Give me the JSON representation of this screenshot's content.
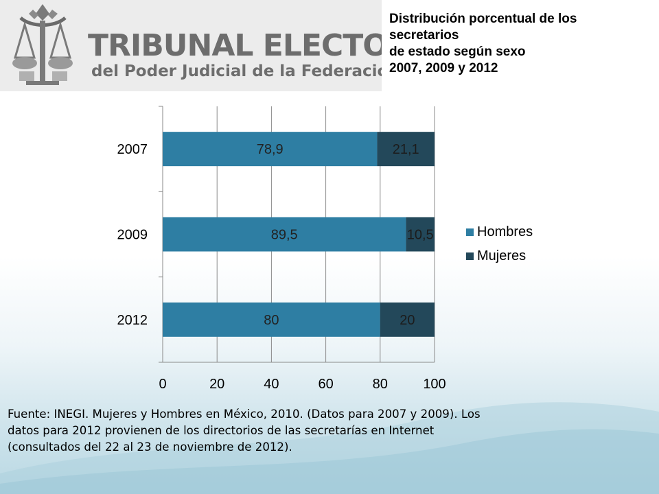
{
  "logo": {
    "line1": "TRIBUNAL ELECTORAL",
    "line2": "del Poder Judicial de la Federación"
  },
  "title_lines": [
    "Distribución porcentual de los",
    "secretarios",
    "de estado según sexo",
    "2007, 2009 y 2012"
  ],
  "colors": {
    "hombres": "#2e7ea3",
    "mujeres": "#23485a"
  },
  "chart_data": {
    "type": "bar",
    "orientation": "horizontal",
    "stacked": true,
    "categories": [
      "2007",
      "2009",
      "2012"
    ],
    "series": [
      {
        "name": "Hombres",
        "values": [
          78.9,
          89.5,
          80
        ],
        "labels": [
          "78,9",
          "89,5",
          "80"
        ]
      },
      {
        "name": "Mujeres",
        "values": [
          21.1,
          10.5,
          20
        ],
        "labels": [
          "21,1",
          "10,5",
          "20"
        ]
      }
    ],
    "xlim": [
      0,
      100
    ],
    "xticks": [
      0,
      20,
      40,
      60,
      80,
      100
    ],
    "grid": "vertical",
    "legend": "right"
  },
  "source": "Fuente: INEGI. Mujeres y Hombres en México, 2010. (Datos para 2007 y 2009). Los datos para 2012 provienen de los directorios de las secretarías en Internet (consultados del 22 al 23 de noviembre de 2012)."
}
